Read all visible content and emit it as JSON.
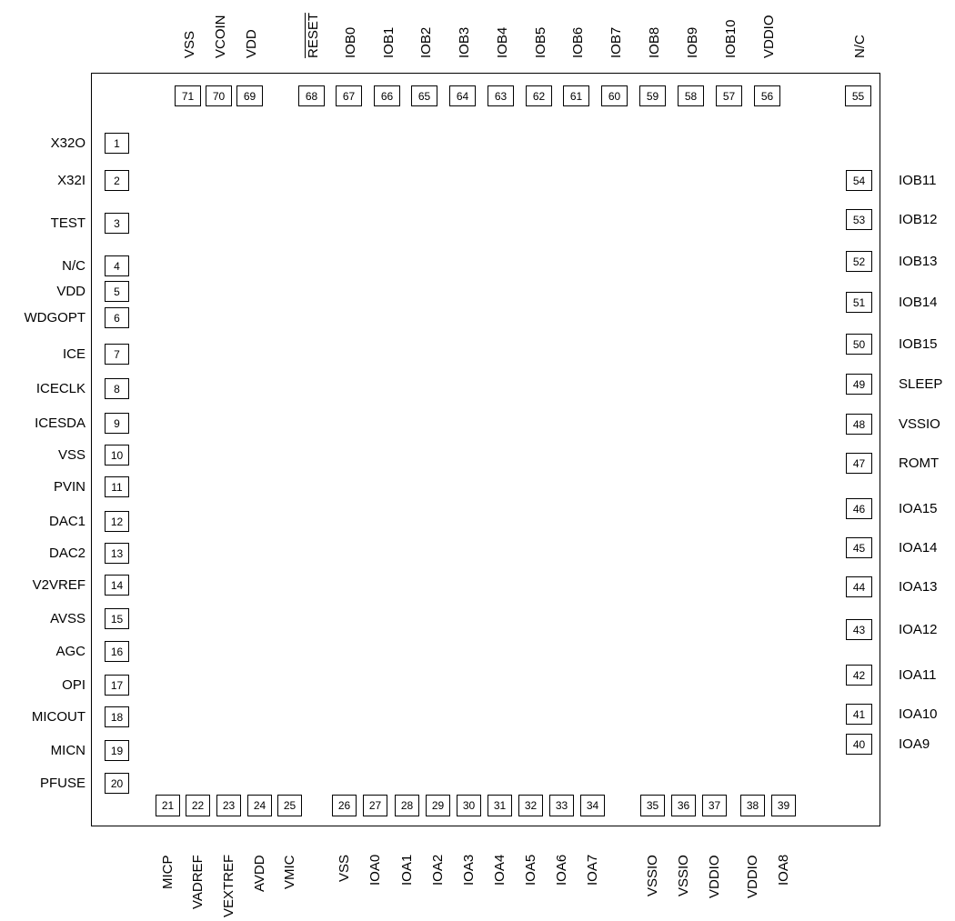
{
  "pins": [
    {
      "num": "1",
      "name": "X32O"
    },
    {
      "num": "2",
      "name": "X32I"
    },
    {
      "num": "3",
      "name": "TEST"
    },
    {
      "num": "4",
      "name": "N/C"
    },
    {
      "num": "5",
      "name": "VDD"
    },
    {
      "num": "6",
      "name": "WDGOPT"
    },
    {
      "num": "7",
      "name": "ICE"
    },
    {
      "num": "8",
      "name": "ICECLK"
    },
    {
      "num": "9",
      "name": "ICESDA"
    },
    {
      "num": "10",
      "name": "VSS"
    },
    {
      "num": "11",
      "name": "PVIN"
    },
    {
      "num": "12",
      "name": "DAC1"
    },
    {
      "num": "13",
      "name": "DAC2"
    },
    {
      "num": "14",
      "name": "V2VREF"
    },
    {
      "num": "15",
      "name": "AVSS"
    },
    {
      "num": "16",
      "name": "AGC"
    },
    {
      "num": "17",
      "name": "OPI"
    },
    {
      "num": "18",
      "name": "MICOUT"
    },
    {
      "num": "19",
      "name": "MICN"
    },
    {
      "num": "20",
      "name": "PFUSE"
    },
    {
      "num": "21",
      "name": "MICP"
    },
    {
      "num": "22",
      "name": "VADREF"
    },
    {
      "num": "23",
      "name": "VEXTREF"
    },
    {
      "num": "24",
      "name": "AVDD"
    },
    {
      "num": "25",
      "name": "VMIC"
    },
    {
      "num": "26",
      "name": "VSS"
    },
    {
      "num": "27",
      "name": "IOA0"
    },
    {
      "num": "28",
      "name": "IOA1"
    },
    {
      "num": "29",
      "name": "IOA2"
    },
    {
      "num": "30",
      "name": "IOA3"
    },
    {
      "num": "31",
      "name": "IOA4"
    },
    {
      "num": "32",
      "name": "IOA5"
    },
    {
      "num": "33",
      "name": "IOA6"
    },
    {
      "num": "34",
      "name": "IOA7"
    },
    {
      "num": "35",
      "name": "VSSIO"
    },
    {
      "num": "36",
      "name": "VSSIO"
    },
    {
      "num": "37",
      "name": "VDDIO"
    },
    {
      "num": "38",
      "name": "VDDIO"
    },
    {
      "num": "39",
      "name": "IOA8"
    },
    {
      "num": "40",
      "name": "IOA9"
    },
    {
      "num": "41",
      "name": "IOA10"
    },
    {
      "num": "42",
      "name": "IOA11"
    },
    {
      "num": "43",
      "name": "IOA12"
    },
    {
      "num": "44",
      "name": "IOA13"
    },
    {
      "num": "45",
      "name": "IOA14"
    },
    {
      "num": "46",
      "name": "IOA15"
    },
    {
      "num": "47",
      "name": "ROMT"
    },
    {
      "num": "48",
      "name": "VSSIO"
    },
    {
      "num": "49",
      "name": "SLEEP"
    },
    {
      "num": "50",
      "name": "IOB15"
    },
    {
      "num": "51",
      "name": "IOB14"
    },
    {
      "num": "52",
      "name": "IOB13"
    },
    {
      "num": "53",
      "name": "IOB12"
    },
    {
      "num": "54",
      "name": "IOB11"
    },
    {
      "num": "55",
      "name": "N/C"
    },
    {
      "num": "56",
      "name": "VDDIO"
    },
    {
      "num": "57",
      "name": "IOB10"
    },
    {
      "num": "58",
      "name": "IOB9"
    },
    {
      "num": "59",
      "name": "IOB8"
    },
    {
      "num": "60",
      "name": "IOB7"
    },
    {
      "num": "61",
      "name": "IOB6"
    },
    {
      "num": "62",
      "name": "IOB5"
    },
    {
      "num": "63",
      "name": "IOB4"
    },
    {
      "num": "64",
      "name": "IOB3"
    },
    {
      "num": "65",
      "name": "IOB2"
    },
    {
      "num": "66",
      "name": "IOB1"
    },
    {
      "num": "67",
      "name": "IOB0"
    },
    {
      "num": "68",
      "name": "RESET"
    },
    {
      "num": "69",
      "name": "VDD"
    },
    {
      "num": "70",
      "name": "VCOIN"
    },
    {
      "num": "71",
      "name": "VSS"
    }
  ]
}
